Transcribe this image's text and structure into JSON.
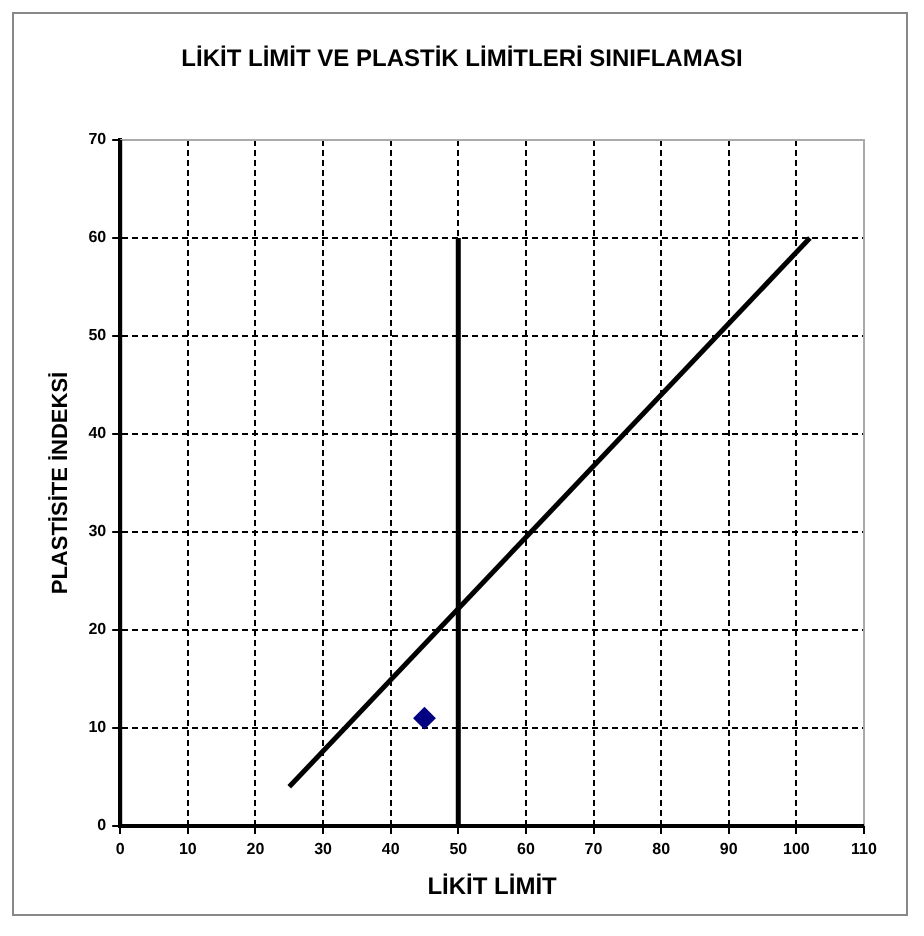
{
  "chart_data": {
    "type": "scatter",
    "title": "LİKİT LİMİT VE PLASTİK LİMİTLERİ SINIFLAMASI",
    "xlabel": "LİKİT LİMİT",
    "ylabel": "PLASTİSİTE İNDEKSİ",
    "xlim": [
      0,
      110
    ],
    "xticks": [
      0,
      10,
      20,
      30,
      40,
      50,
      60,
      70,
      80,
      90,
      100,
      110
    ],
    "ylim": [
      0,
      70
    ],
    "yticks": [
      0,
      10,
      20,
      30,
      40,
      50,
      60,
      70
    ],
    "grid": true,
    "legend": false,
    "series": [
      {
        "type": "line",
        "color": "#000000",
        "x": [
          25,
          102
        ],
        "values": [
          4,
          60
        ],
        "marker": "none",
        "line_style": "solid"
      },
      {
        "type": "line",
        "color": "#000000",
        "x": [
          50,
          50
        ],
        "values": [
          0,
          60
        ],
        "marker": "none",
        "line_style": "solid"
      },
      {
        "color": "#000080",
        "x": [
          45
        ],
        "values": [
          11
        ],
        "marker": "diamond"
      }
    ]
  }
}
